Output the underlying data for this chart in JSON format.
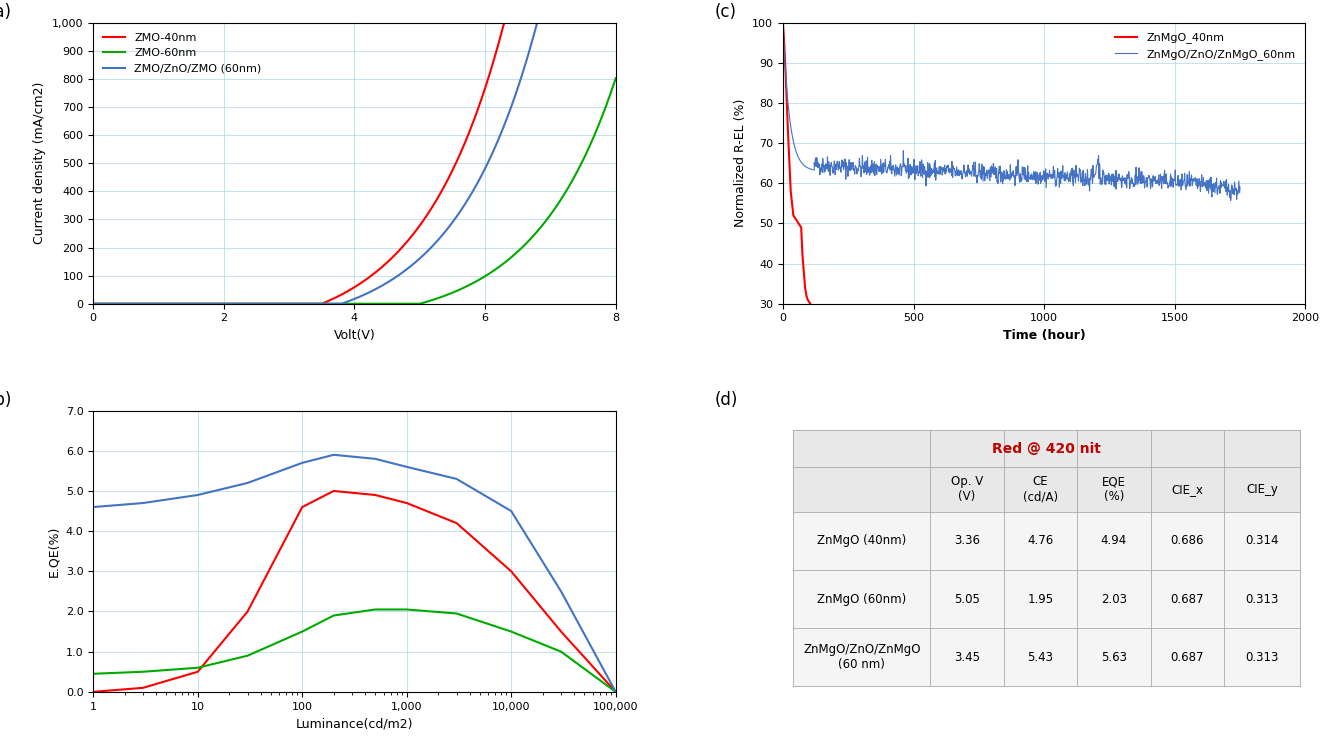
{
  "panel_a": {
    "title": "(a)",
    "xlabel": "Volt(V)",
    "ylabel": "Current density (mA/cm2)",
    "xlim": [
      0.0,
      8.0
    ],
    "ylim": [
      0,
      1000
    ],
    "yticks": [
      0,
      100,
      200,
      300,
      400,
      500,
      600,
      700,
      800,
      900,
      1000
    ],
    "xticks": [
      0.0,
      2.0,
      4.0,
      6.0,
      8.0
    ],
    "lines": [
      {
        "label": "ZMO-40nm",
        "color": "#FF0000",
        "vt": 3.5,
        "scale": 120
      },
      {
        "label": "ZMO-60nm",
        "color": "#00AA00",
        "vt": 5.0,
        "scale": 80
      },
      {
        "label": "ZMO/ZnO/ZMO (60nm)",
        "color": "#4472C4",
        "vt": 3.8,
        "scale": 100
      }
    ]
  },
  "panel_b": {
    "title": "(b)",
    "xlabel": "Luminance(cd/m2)",
    "ylabel": "E.QE(%)",
    "ylim": [
      0.0,
      7.0
    ],
    "yticks": [
      0.0,
      1.0,
      2.0,
      3.0,
      4.0,
      5.0,
      6.0,
      7.0
    ],
    "lines": [
      {
        "label": "ZMO-40nm",
        "color": "#FF0000",
        "lum": [
          1,
          3,
          10,
          30,
          100,
          200,
          500,
          1000,
          3000,
          10000,
          30000,
          100000
        ],
        "eqe": [
          0.0,
          0.1,
          0.5,
          2.0,
          4.6,
          5.0,
          4.9,
          4.7,
          4.2,
          3.0,
          1.5,
          0.0
        ]
      },
      {
        "label": "ZMO-60nm",
        "color": "#00AA00",
        "lum": [
          1,
          3,
          10,
          30,
          100,
          200,
          500,
          1000,
          3000,
          10000,
          30000,
          100000
        ],
        "eqe": [
          0.45,
          0.5,
          0.6,
          0.9,
          1.5,
          1.9,
          2.05,
          2.05,
          1.95,
          1.5,
          1.0,
          0.0
        ]
      },
      {
        "label": "ZMO/ZnO/ZMO (60nm)",
        "color": "#4472C4",
        "lum": [
          1,
          3,
          10,
          30,
          100,
          200,
          500,
          1000,
          3000,
          10000,
          30000,
          100000
        ],
        "eqe": [
          4.6,
          4.7,
          4.9,
          5.2,
          5.7,
          5.9,
          5.8,
          5.6,
          5.3,
          4.5,
          2.5,
          0.0
        ]
      }
    ]
  },
  "panel_c": {
    "title": "(c)",
    "xlabel": "Time (hour)",
    "ylabel": "Normalized R-EL (%)",
    "xlim": [
      0,
      2000
    ],
    "ylim": [
      30,
      100
    ],
    "yticks": [
      30,
      40,
      50,
      60,
      70,
      80,
      90,
      100
    ],
    "xticks": [
      0,
      500,
      1000,
      1500,
      2000
    ],
    "lines": [
      {
        "label": "ZnMgO_40nm",
        "color": "#FF0000"
      },
      {
        "label": "ZnMgO/ZnO/ZnMgO_60nm",
        "color": "#4472C4"
      }
    ]
  },
  "panel_d": {
    "title": "(d)",
    "header": "Red @ 420 nit",
    "columns": [
      "Op. V\n(V)",
      "CE\n(cd/A)",
      "EQE\n(%)",
      "CIE_x",
      "CIE_y"
    ],
    "rows": [
      [
        "ZnMgO (40nm)",
        "3.36",
        "4.76",
        "4.94",
        "0.686",
        "0.314"
      ],
      [
        "ZnMgO (60nm)",
        "5.05",
        "1.95",
        "2.03",
        "0.687",
        "0.313"
      ],
      [
        "ZnMgO/ZnO/ZnMgO\n(60 nm)",
        "3.45",
        "5.43",
        "5.63",
        "0.687",
        "0.313"
      ]
    ],
    "header_color": "#C00000",
    "bg_color": "#E8E8E8",
    "row_bg": "#F5F5F5"
  },
  "fig_bg": "#FFFFFF"
}
